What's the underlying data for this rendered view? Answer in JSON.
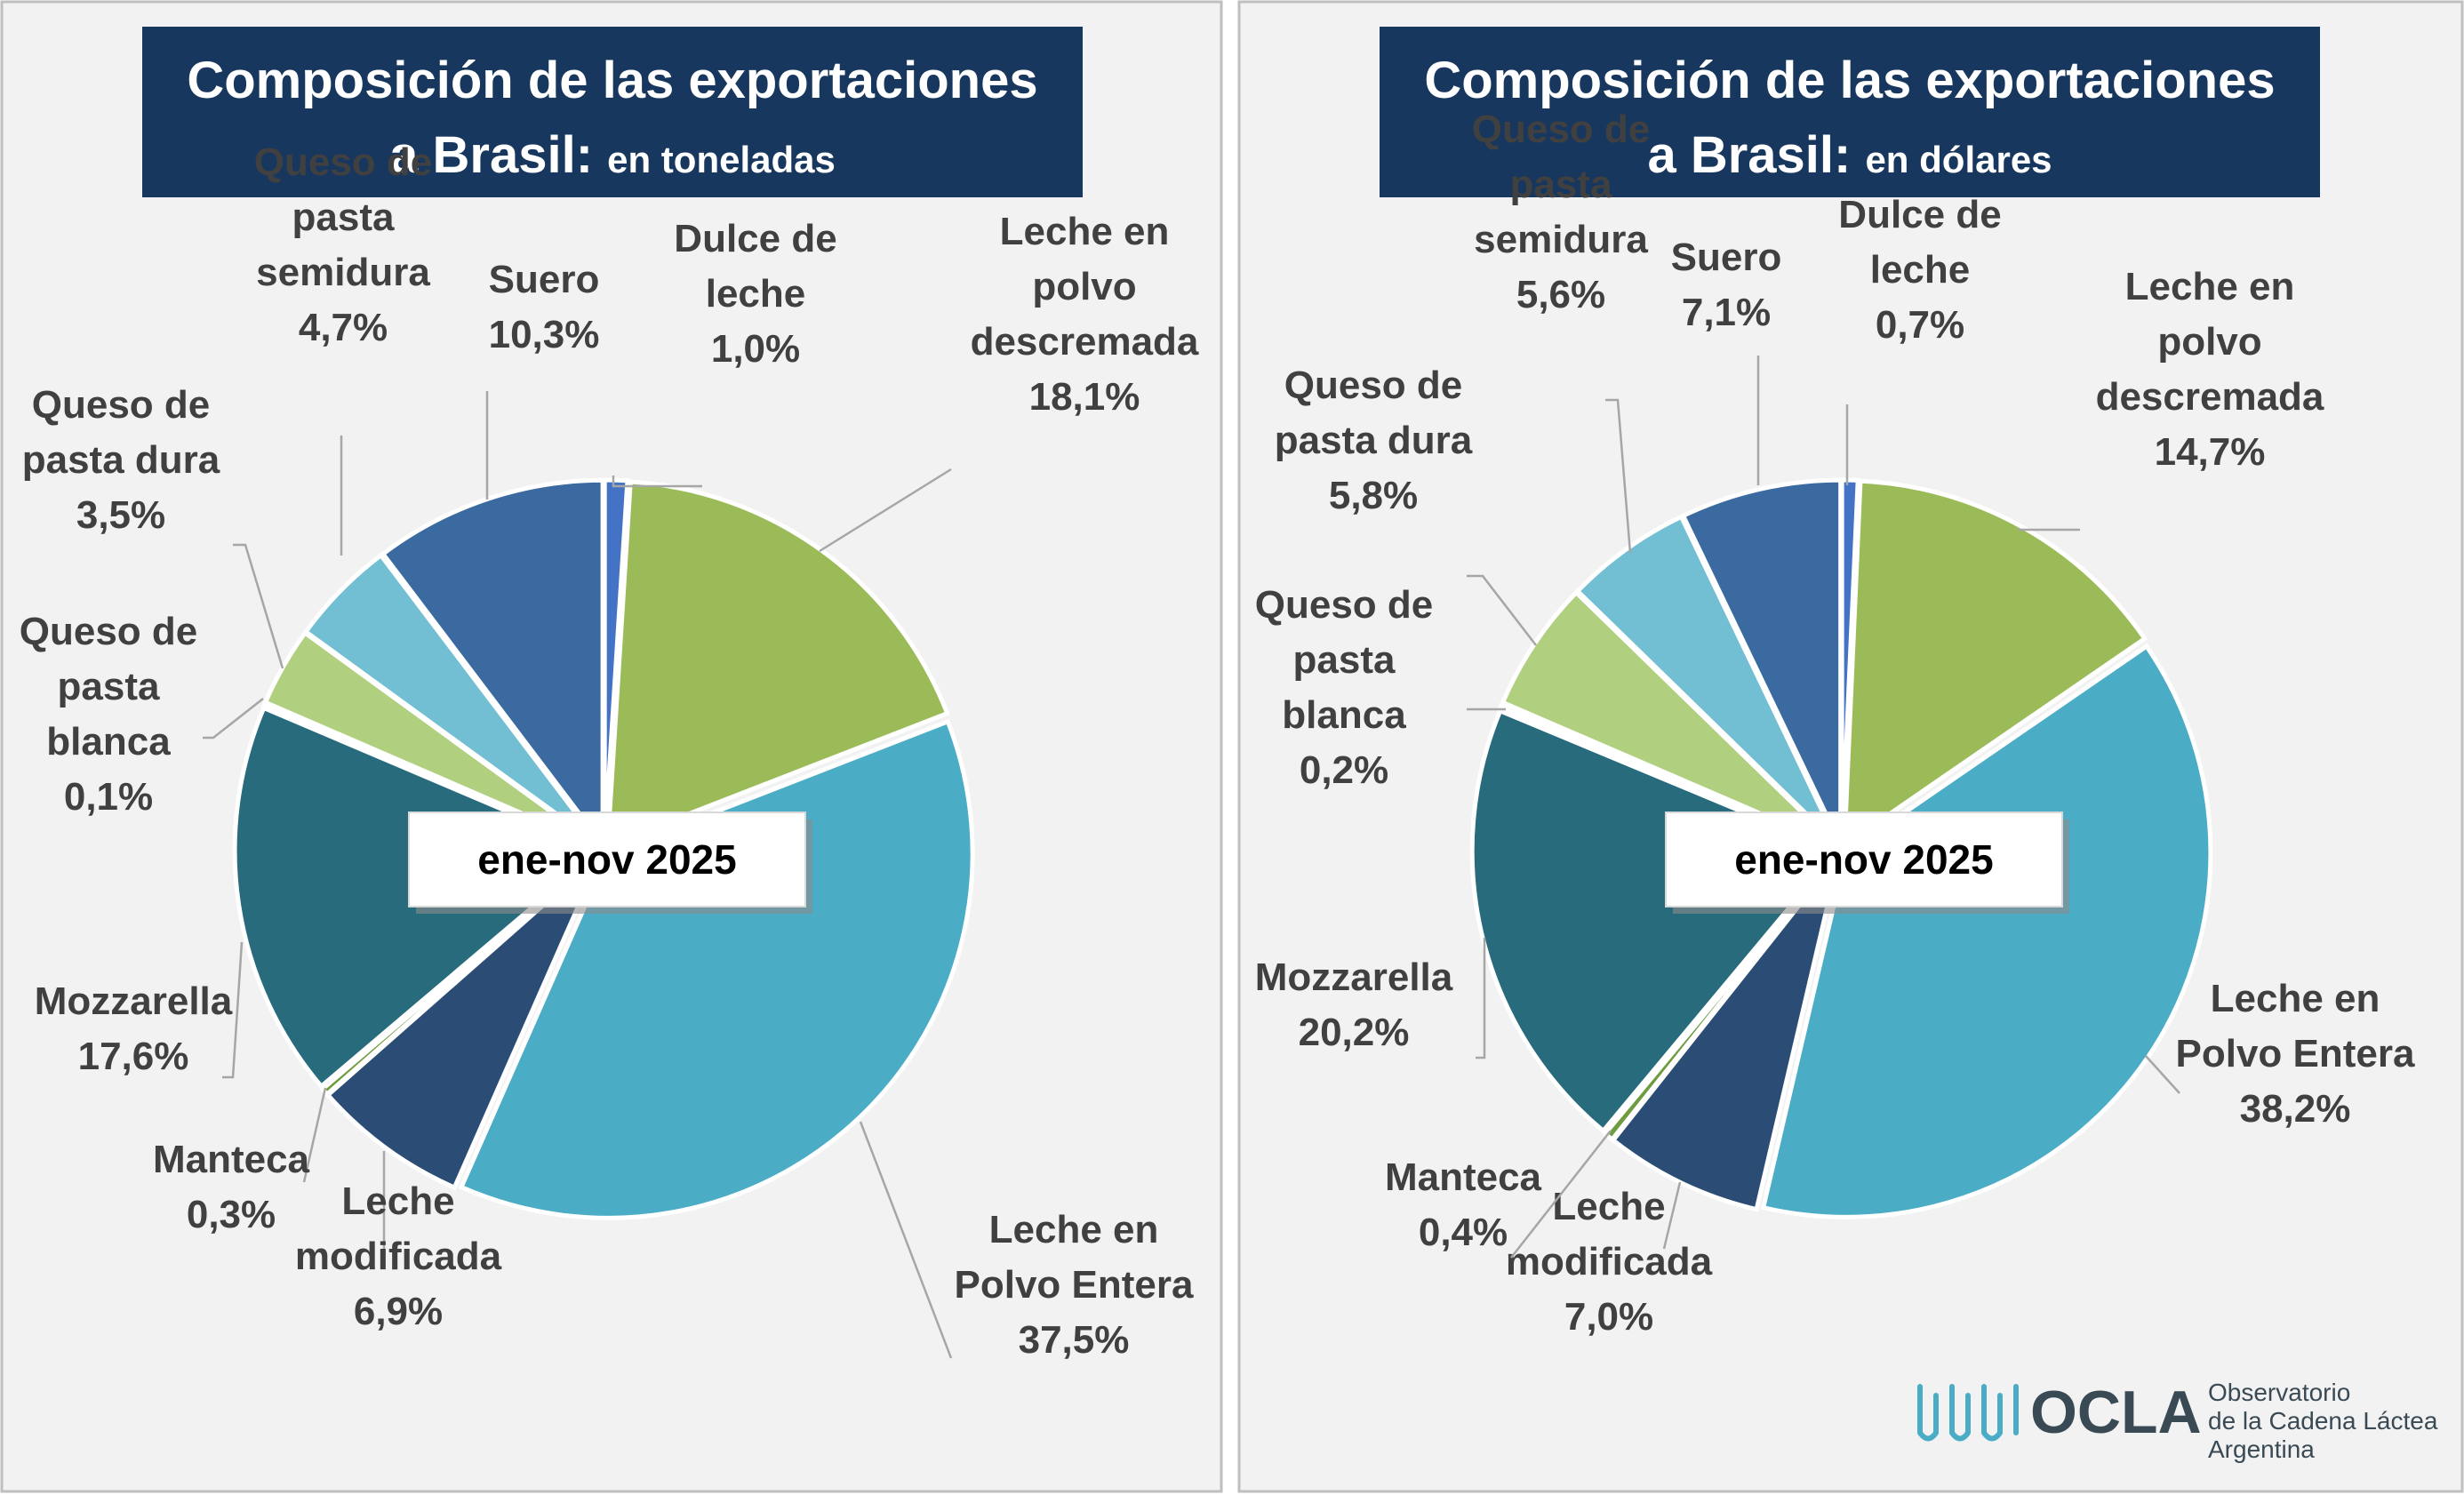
{
  "logo": {
    "word": "OCLA",
    "line1": "Observatorio",
    "line2": "de la Cadena Láctea",
    "line3": "Argentina"
  },
  "chart_data": [
    {
      "type": "pie",
      "title": "Composición de las exportaciones",
      "title_line2": "a Brasil:",
      "subtitle": "en toneladas",
      "period": "ene-nov 2025",
      "categories": [
        "Dulce de leche",
        "Leche en polvo descremada",
        "Leche en Polvo Entera",
        "Leche modificada",
        "Manteca",
        "Mozzarella",
        "Queso de pasta blanca",
        "Queso de pasta dura",
        "Queso de pasta semidura",
        "Suero"
      ],
      "values": [
        1.0,
        18.1,
        37.5,
        6.9,
        0.3,
        17.6,
        0.1,
        3.5,
        4.7,
        10.3
      ],
      "value_labels": [
        "1,0%",
        "18,1%",
        "37,5%",
        "6,9%",
        "0,3%",
        "17,6%",
        "0,1%",
        "3,5%",
        "4,7%",
        "10,3%"
      ],
      "label_lines": [
        [
          "Dulce de",
          "leche"
        ],
        [
          "Leche en",
          "polvo",
          "descremada"
        ],
        [
          "Leche en",
          "Polvo Entera"
        ],
        [
          "Leche",
          "modificada"
        ],
        [
          "Manteca"
        ],
        [
          "Mozzarella"
        ],
        [
          "Queso de",
          "pasta",
          "blanca"
        ],
        [
          "Queso de",
          "pasta dura"
        ],
        [
          "Queso de",
          "pasta",
          "semidura"
        ],
        [
          "Suero"
        ]
      ],
      "colors": [
        "#4472C4",
        "#9BBB59",
        "#4BACC6",
        "#2B4C74",
        "#6E9B3E",
        "#276B7C",
        "#D7E4BD",
        "#B0CF7F",
        "#72BED3",
        "#3B6AA0"
      ]
    },
    {
      "type": "pie",
      "title": "Composición de las exportaciones",
      "title_line2": "a Brasil:",
      "subtitle": "en dólares",
      "period": "ene-nov 2025",
      "categories": [
        "Dulce de leche",
        "Leche en polvo descremada",
        "Leche en Polvo Entera",
        "Leche modificada",
        "Manteca",
        "Mozzarella",
        "Queso de pasta blanca",
        "Queso de pasta dura",
        "Queso de pasta semidura",
        "Suero"
      ],
      "values": [
        0.7,
        14.7,
        38.2,
        7.0,
        0.4,
        20.2,
        0.2,
        5.8,
        5.6,
        7.1
      ],
      "value_labels": [
        "0,7%",
        "14,7%",
        "38,2%",
        "7,0%",
        "0,4%",
        "20,2%",
        "0,2%",
        "5,8%",
        "5,6%",
        "7,1%"
      ],
      "label_lines": [
        [
          "Dulce de",
          "leche"
        ],
        [
          "Leche en",
          "polvo",
          "descremada"
        ],
        [
          "Leche en",
          "Polvo Entera"
        ],
        [
          "Leche",
          "modificada"
        ],
        [
          "Manteca"
        ],
        [
          "Mozzarella"
        ],
        [
          "Queso de",
          "pasta",
          "blanca"
        ],
        [
          "Queso de",
          "pasta dura"
        ],
        [
          "Queso de",
          "pasta",
          "semidura"
        ],
        [
          "Suero"
        ]
      ],
      "colors": [
        "#4472C4",
        "#9BBB59",
        "#4BACC6",
        "#2B4C74",
        "#6E9B3E",
        "#276B7C",
        "#D7E4BD",
        "#B0CF7F",
        "#72BED3",
        "#3B6AA0"
      ]
    }
  ]
}
